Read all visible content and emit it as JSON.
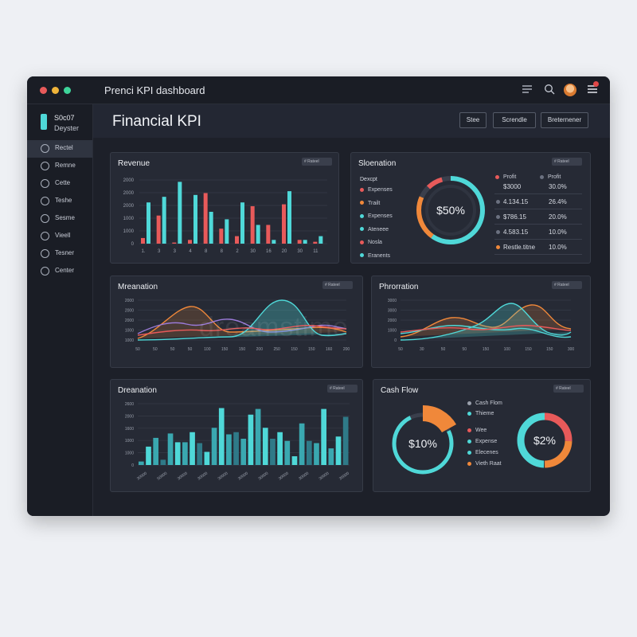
{
  "app": {
    "title": "Prenci KPI dashboard"
  },
  "brand": {
    "line1": "S0c07",
    "line2": "Deyster"
  },
  "sidebar": {
    "items": [
      {
        "label": "Rectel",
        "icon": "chart-icon",
        "active": true
      },
      {
        "label": "Remne",
        "icon": "clock-icon",
        "active": false
      },
      {
        "label": "Cette",
        "icon": "clock-icon",
        "active": false
      },
      {
        "label": "Teshe",
        "icon": "clock-icon",
        "active": false
      },
      {
        "label": "Sesme",
        "icon": "clock-icon",
        "active": false
      },
      {
        "label": "Vieell",
        "icon": "clock-icon",
        "active": false
      },
      {
        "label": "Tesner",
        "icon": "info-icon",
        "active": false
      },
      {
        "label": "Center",
        "icon": "home-icon",
        "active": false
      }
    ]
  },
  "header": {
    "title": "Financial KPI",
    "buttons": [
      "Stee",
      "Screndle",
      "Breternener"
    ]
  },
  "dropdown_label": "# Rateel",
  "watermark": "dreamstime",
  "revenue": {
    "title": "Revenue",
    "chart_data": {
      "type": "bar",
      "y_ticks": [
        "2000",
        "2000",
        "2000",
        "1000",
        "1000",
        "0"
      ],
      "x_ticks": [
        "1.",
        "3",
        "3",
        "4",
        "8",
        "8",
        "2",
        "30",
        "16",
        "20",
        "30",
        "11"
      ],
      "series": [
        {
          "color": "#e85a5a",
          "values": [
            0.15,
            0.75,
            0.03,
            0.1,
            1.35,
            0.4,
            0.2,
            1.0,
            0.5,
            1.05,
            0.1,
            0.05
          ]
        },
        {
          "color": "#4fd8d8",
          "values": [
            1.1,
            1.25,
            1.65,
            1.3,
            0.85,
            0.65,
            1.1,
            0.5,
            0.1,
            1.4,
            0.1,
            0.2
          ]
        }
      ]
    }
  },
  "sloenation": {
    "title": "Sloenation",
    "col_title": "Dexcpt",
    "donut_value": "$50%",
    "legend": [
      {
        "label": "Expenses",
        "color": "#e85a5a"
      },
      {
        "label": "Trailt",
        "color": "#f0883a"
      },
      {
        "label": "Expenses",
        "color": "#4fd8d8"
      },
      {
        "label": "Ateneee",
        "color": "#4fd8d8"
      },
      {
        "label": "Nosla",
        "color": "#e85a5a"
      },
      {
        "label": "Eranents",
        "color": "#4fd8d8"
      }
    ],
    "table_headers": [
      "Profit",
      "Profit"
    ],
    "rows": [
      {
        "left": "$3000",
        "right": "30.0%",
        "color": ""
      },
      {
        "left": "4.134.15",
        "right": "26.4%",
        "color": "#6b7180"
      },
      {
        "left": "$786.15",
        "right": "20.0%",
        "color": "#6b7180"
      },
      {
        "left": "4.583.15",
        "right": "10.0%",
        "color": "#6b7180"
      },
      {
        "left": "Restle.titne",
        "right": "10.0%",
        "color": "#f0883a"
      }
    ]
  },
  "mreanation": {
    "title": "Mreanation",
    "y_ticks": [
      "2000",
      "2000",
      "2000",
      "1000",
      "1000"
    ],
    "x_ticks": [
      "50",
      "50",
      "50",
      "50",
      "100",
      "150",
      "150",
      "200",
      "250",
      "150",
      "150",
      "160",
      "200"
    ]
  },
  "phrorration": {
    "title": "Phrorration",
    "y_ticks": [
      "3000",
      "3000",
      "2000",
      "1000",
      "0"
    ],
    "x_ticks": [
      "50",
      "30",
      "50",
      "50",
      "150",
      "100",
      "150",
      "150",
      "300"
    ]
  },
  "dreanation": {
    "title": "Dreanation",
    "y_ticks": [
      "2600",
      "2000",
      "1600",
      "1000",
      "1000",
      "0"
    ],
    "x_ticks": [
      "30000",
      "50000",
      "30000",
      "30000",
      "30000",
      "30000",
      "30000",
      "30000",
      "30000",
      "30000",
      "35000"
    ]
  },
  "cashflow": {
    "title": "Cash Flow",
    "donut1_value": "$10%",
    "donut2_value": "$2%",
    "legend": [
      {
        "label": "Cash Flom",
        "color": "#9aa0ac"
      },
      {
        "label": "Thieme",
        "color": "#4fd8d8"
      },
      {
        "label": "Wee",
        "color": "#e85a5a"
      },
      {
        "label": "Expense",
        "color": "#4fd8d8"
      },
      {
        "label": "Elecenes",
        "color": "#4fd8d8"
      },
      {
        "label": "Vieth Raat",
        "color": "#f0883a"
      }
    ]
  }
}
